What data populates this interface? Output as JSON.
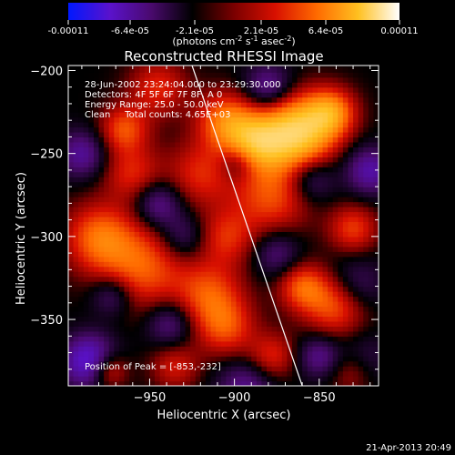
{
  "chart_data": {
    "type": "heatmap",
    "title": "Reconstructed RHESSI Image",
    "xlabel": "Heliocentric X (arcsec)",
    "ylabel": "Heliocentric Y (arcsec)",
    "xlim": [
      -998,
      -815
    ],
    "ylim": [
      -390,
      -197
    ],
    "x_ticks": [
      -950,
      -900,
      -850
    ],
    "y_ticks": [
      -200,
      -250,
      -300,
      -350
    ],
    "colorbar": {
      "ticks": [
        "-0.00011",
        "-6.4e-05",
        "-2.1e-05",
        "2.1e-05",
        "6.4e-05",
        "0.00011"
      ],
      "unit_label": [
        "(photons cm",
        "-2",
        " s",
        "-1",
        " asec",
        "-2",
        ")"
      ],
      "colors": [
        "#0018ff",
        "#5a12cc",
        "#4a0a6e",
        "#000000",
        "#7a0000",
        "#d81000",
        "#ff6a00",
        "#ffc020",
        "#ffffff"
      ]
    },
    "annotations": {
      "time_range": "28-Jun-2002 23:24:04.000 to 23:29:30.000",
      "detectors": "Detectors: 4F 5F 6F 7F 8F, A  0",
      "energy": "Energy Range: 25.0 - 50.0 keV",
      "clean": "Clean     Total counts: 4.65E+03",
      "peak": "Position of Peak = [-853,-232]"
    },
    "peak": {
      "x": -853,
      "y": -232
    },
    "limb_line": {
      "x": [
        -925,
        -860
      ],
      "y": [
        -197,
        -390
      ]
    },
    "blobs": [
      {
        "x": -863,
        "y": -237,
        "r": 15,
        "v": 1.0
      },
      {
        "x": -888,
        "y": -243,
        "r": 12,
        "v": 0.7
      },
      {
        "x": -843,
        "y": -225,
        "r": 10,
        "v": 0.6
      },
      {
        "x": -905,
        "y": -230,
        "r": 12,
        "v": 0.55
      },
      {
        "x": -878,
        "y": -275,
        "r": 16,
        "v": 0.45
      },
      {
        "x": -920,
        "y": -262,
        "r": 14,
        "v": 0.35
      },
      {
        "x": -960,
        "y": -262,
        "r": 12,
        "v": 0.35
      },
      {
        "x": -980,
        "y": -300,
        "r": 14,
        "v": 0.5
      },
      {
        "x": -955,
        "y": -318,
        "r": 18,
        "v": 0.5
      },
      {
        "x": -915,
        "y": -335,
        "r": 14,
        "v": 0.45
      },
      {
        "x": -905,
        "y": -300,
        "r": 12,
        "v": 0.35
      },
      {
        "x": -860,
        "y": -330,
        "r": 10,
        "v": 0.45
      },
      {
        "x": -840,
        "y": -340,
        "r": 13,
        "v": 0.55
      },
      {
        "x": -830,
        "y": -295,
        "r": 10,
        "v": 0.4
      },
      {
        "x": -965,
        "y": -235,
        "r": 10,
        "v": 0.45
      },
      {
        "x": -975,
        "y": -380,
        "r": 8,
        "v": 0.5
      },
      {
        "x": -905,
        "y": -355,
        "r": 12,
        "v": 0.4
      },
      {
        "x": -878,
        "y": -372,
        "r": 10,
        "v": 0.35
      },
      {
        "x": -830,
        "y": -380,
        "r": 10,
        "v": 0.35
      },
      {
        "x": -945,
        "y": -210,
        "r": 12,
        "v": 0.35
      },
      {
        "x": -935,
        "y": -378,
        "r": 10,
        "v": 0.3
      },
      {
        "x": -990,
        "y": -250,
        "r": 10,
        "v": -0.4
      },
      {
        "x": -945,
        "y": -280,
        "r": 10,
        "v": -0.4
      },
      {
        "x": -985,
        "y": -375,
        "r": 11,
        "v": -0.7
      },
      {
        "x": -880,
        "y": -210,
        "r": 10,
        "v": -0.4
      },
      {
        "x": -855,
        "y": -265,
        "r": 10,
        "v": -0.35
      },
      {
        "x": -830,
        "y": -330,
        "r": 12,
        "v": -0.35
      },
      {
        "x": -820,
        "y": -260,
        "r": 10,
        "v": -0.45
      },
      {
        "x": -930,
        "y": -300,
        "r": 10,
        "v": -0.3
      },
      {
        "x": -875,
        "y": -310,
        "r": 10,
        "v": -0.3
      },
      {
        "x": -938,
        "y": -352,
        "r": 10,
        "v": -0.35
      },
      {
        "x": -893,
        "y": -390,
        "r": 12,
        "v": -0.35
      },
      {
        "x": -850,
        "y": -372,
        "r": 9,
        "v": -0.35
      },
      {
        "x": -825,
        "y": -375,
        "r": 11,
        "v": -0.3
      },
      {
        "x": -972,
        "y": -335,
        "r": 9,
        "v": -0.35
      },
      {
        "x": -898,
        "y": -255,
        "r": 8,
        "v": -0.3
      }
    ]
  },
  "footer": {
    "timestamp": "21-Apr-2013 20:49"
  }
}
